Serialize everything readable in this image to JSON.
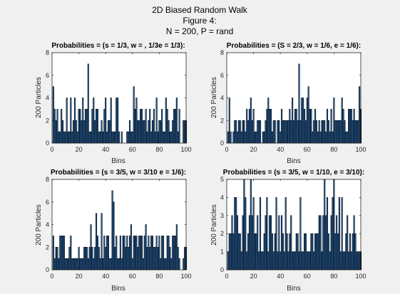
{
  "figure": {
    "title_lines": [
      "2D Biased Random Walk",
      "Figure 4:",
      "N = 200, P = rand"
    ],
    "background": "#f0f0f0"
  },
  "colors": {
    "bar_fill": "#2c6fb5",
    "bar_edge": "#000000",
    "axes_bg": "#ffffff"
  },
  "chart_data": [
    {
      "type": "bar",
      "title": "Probabilities = (s = 1/3, w = , 1/3e = 1/3):",
      "xlabel": "Bins",
      "ylabel": "200 Particles",
      "xlim": [
        0,
        100
      ],
      "ylim": [
        0,
        8
      ],
      "xticks": [
        0,
        20,
        40,
        60,
        80,
        100
      ],
      "yticks": [
        0,
        2,
        4,
        6,
        8
      ],
      "x": [
        1,
        2,
        3,
        4,
        5,
        6,
        7,
        8,
        9,
        10,
        11,
        12,
        13,
        14,
        15,
        16,
        17,
        18,
        19,
        20,
        21,
        22,
        23,
        24,
        25,
        26,
        27,
        28,
        29,
        30,
        31,
        32,
        33,
        34,
        35,
        36,
        37,
        38,
        39,
        40,
        41,
        42,
        43,
        44,
        45,
        46,
        47,
        48,
        49,
        50,
        51,
        52,
        53,
        54,
        55,
        56,
        57,
        58,
        59,
        60,
        61,
        62,
        63,
        64,
        65,
        66,
        67,
        68,
        69,
        70,
        71,
        72,
        73,
        74,
        75,
        76,
        77,
        78,
        79,
        80,
        81,
        82,
        83,
        84,
        85,
        86,
        87,
        88,
        89,
        90,
        91,
        92,
        93,
        94,
        95,
        96,
        97,
        98,
        99,
        100
      ],
      "values": [
        5,
        3,
        2,
        3,
        1,
        1,
        3,
        2,
        1,
        1,
        4,
        1,
        1,
        4,
        1,
        2,
        4,
        2,
        1,
        3,
        3,
        2,
        4,
        2,
        3,
        3,
        7,
        1,
        1,
        3,
        4,
        2,
        3,
        3,
        1,
        1,
        2,
        1,
        3,
        4,
        1,
        2,
        2,
        4,
        1,
        1,
        1,
        4,
        4,
        1,
        0,
        1,
        0,
        0,
        0,
        1,
        1,
        2,
        1,
        1,
        5,
        3,
        4,
        2,
        2,
        3,
        3,
        2,
        2,
        3,
        1,
        2,
        3,
        1,
        2,
        3,
        1,
        4,
        1,
        2,
        2,
        3,
        1,
        1,
        4,
        3,
        2,
        1,
        1,
        2,
        3,
        3,
        4,
        1,
        3,
        0,
        0,
        2,
        2,
        2
      ]
    },
    {
      "type": "bar",
      "title": "Probabilities = (S = 2/3, w = 1/6, e = 1/6):",
      "xlabel": "Bins",
      "ylabel": "200 Particles",
      "xlim": [
        0,
        100
      ],
      "ylim": [
        0,
        8
      ],
      "xticks": [
        0,
        20,
        40,
        60,
        80,
        100
      ],
      "yticks": [
        0,
        2,
        4,
        6,
        8
      ],
      "x": [
        1,
        2,
        3,
        4,
        5,
        6,
        7,
        8,
        9,
        10,
        11,
        12,
        13,
        14,
        15,
        16,
        17,
        18,
        19,
        20,
        21,
        22,
        23,
        24,
        25,
        26,
        27,
        28,
        29,
        30,
        31,
        32,
        33,
        34,
        35,
        36,
        37,
        38,
        39,
        40,
        41,
        42,
        43,
        44,
        45,
        46,
        47,
        48,
        49,
        50,
        51,
        52,
        53,
        54,
        55,
        56,
        57,
        58,
        59,
        60,
        61,
        62,
        63,
        64,
        65,
        66,
        67,
        68,
        69,
        70,
        71,
        72,
        73,
        74,
        75,
        76,
        77,
        78,
        79,
        80,
        81,
        82,
        83,
        84,
        85,
        86,
        87,
        88,
        89,
        90,
        91,
        92,
        93,
        94,
        95,
        96,
        97,
        98,
        99,
        100
      ],
      "values": [
        1,
        4,
        1,
        0,
        1,
        2,
        2,
        1,
        2,
        2,
        1,
        2,
        2,
        1,
        3,
        2,
        3,
        4,
        2,
        3,
        1,
        1,
        2,
        2,
        2,
        0,
        1,
        1,
        2,
        3,
        4,
        3,
        3,
        1,
        2,
        2,
        0,
        2,
        2,
        1,
        3,
        2,
        2,
        2,
        2,
        2,
        3,
        2,
        4,
        2,
        3,
        3,
        2,
        7,
        2,
        4,
        4,
        3,
        2,
        4,
        5,
        3,
        3,
        1,
        2,
        3,
        2,
        1,
        2,
        1,
        2,
        2,
        2,
        1,
        3,
        2,
        1,
        3,
        1,
        4,
        2,
        2,
        2,
        2,
        2,
        4,
        3,
        2,
        1,
        1,
        3,
        3,
        3,
        2,
        3,
        2,
        2,
        2,
        5,
        3
      ]
    },
    {
      "type": "bar",
      "title": "Probabilities = (s = 3/5, w = 3/10 e = 1/6):",
      "xlabel": "Bins",
      "ylabel": "200 Particles",
      "xlim": [
        0,
        100
      ],
      "ylim": [
        0,
        8
      ],
      "xticks": [
        0,
        20,
        40,
        60,
        80,
        100
      ],
      "yticks": [
        0,
        2,
        4,
        6,
        8
      ],
      "x": [
        1,
        2,
        3,
        4,
        5,
        6,
        7,
        8,
        9,
        10,
        11,
        12,
        13,
        14,
        15,
        16,
        17,
        18,
        19,
        20,
        21,
        22,
        23,
        24,
        25,
        26,
        27,
        28,
        29,
        30,
        31,
        32,
        33,
        34,
        35,
        36,
        37,
        38,
        39,
        40,
        41,
        42,
        43,
        44,
        45,
        46,
        47,
        48,
        49,
        50,
        51,
        52,
        53,
        54,
        55,
        56,
        57,
        58,
        59,
        60,
        61,
        62,
        63,
        64,
        65,
        66,
        67,
        68,
        69,
        70,
        71,
        72,
        73,
        74,
        75,
        76,
        77,
        78,
        79,
        80,
        81,
        82,
        83,
        84,
        85,
        86,
        87,
        88,
        89,
        90,
        91,
        92,
        93,
        94,
        95,
        96,
        97,
        98,
        99,
        100
      ],
      "values": [
        3,
        1,
        2,
        2,
        1,
        3,
        3,
        3,
        3,
        1,
        1,
        1,
        2,
        3,
        1,
        1,
        1,
        1,
        1,
        2,
        1,
        1,
        1,
        2,
        2,
        2,
        1,
        2,
        4,
        2,
        1,
        2,
        5,
        3,
        2,
        1,
        5,
        1,
        3,
        2,
        3,
        3,
        1,
        1,
        7,
        6,
        2,
        3,
        1,
        1,
        3,
        1,
        3,
        3,
        2,
        3,
        2,
        3,
        4,
        1,
        3,
        3,
        3,
        2,
        3,
        3,
        3,
        1,
        3,
        4,
        2,
        3,
        2,
        3,
        3,
        2,
        2,
        3,
        2,
        3,
        1,
        3,
        3,
        1,
        1,
        3,
        3,
        2,
        1,
        3,
        3,
        3,
        4,
        2,
        1,
        0,
        0,
        1,
        2,
        2
      ]
    },
    {
      "type": "bar",
      "title": "Probabilities = (s = 3/5, w = 1/10, e = 3/10):",
      "xlabel": "Bins",
      "ylabel": "200 Particles",
      "xlim": [
        0,
        100
      ],
      "ylim": [
        0,
        5
      ],
      "xticks": [
        0,
        20,
        40,
        60,
        80,
        100
      ],
      "yticks": [
        0,
        1,
        2,
        3,
        4,
        5
      ],
      "x": [
        1,
        2,
        3,
        4,
        5,
        6,
        7,
        8,
        9,
        10,
        11,
        12,
        13,
        14,
        15,
        16,
        17,
        18,
        19,
        20,
        21,
        22,
        23,
        24,
        25,
        26,
        27,
        28,
        29,
        30,
        31,
        32,
        33,
        34,
        35,
        36,
        37,
        38,
        39,
        40,
        41,
        42,
        43,
        44,
        45,
        46,
        47,
        48,
        49,
        50,
        51,
        52,
        53,
        54,
        55,
        56,
        57,
        58,
        59,
        60,
        61,
        62,
        63,
        64,
        65,
        66,
        67,
        68,
        69,
        70,
        71,
        72,
        73,
        74,
        75,
        76,
        77,
        78,
        79,
        80,
        81,
        82,
        83,
        84,
        85,
        86,
        87,
        88,
        89,
        90,
        91,
        92,
        93,
        94,
        95,
        96,
        97,
        98,
        99,
        100
      ],
      "values": [
        1,
        2,
        2,
        3,
        2,
        4,
        4,
        3,
        2,
        2,
        1,
        3,
        5,
        4,
        1,
        2,
        3,
        5,
        3,
        4,
        2,
        2,
        3,
        1,
        4,
        1,
        1,
        2,
        3,
        4,
        1,
        3,
        3,
        2,
        1,
        2,
        4,
        1,
        3,
        1,
        3,
        2,
        1,
        4,
        2,
        1,
        2,
        3,
        1,
        1,
        1,
        2,
        2,
        1,
        4,
        1,
        1,
        2,
        2,
        1,
        1,
        1,
        2,
        2,
        1,
        2,
        2,
        2,
        3,
        3,
        1,
        3,
        5,
        3,
        4,
        2,
        1,
        3,
        4,
        5,
        2,
        3,
        2,
        4,
        1,
        4,
        1,
        1,
        2,
        3,
        1,
        2,
        1,
        2,
        3,
        2,
        1,
        1,
        1,
        1
      ]
    }
  ]
}
